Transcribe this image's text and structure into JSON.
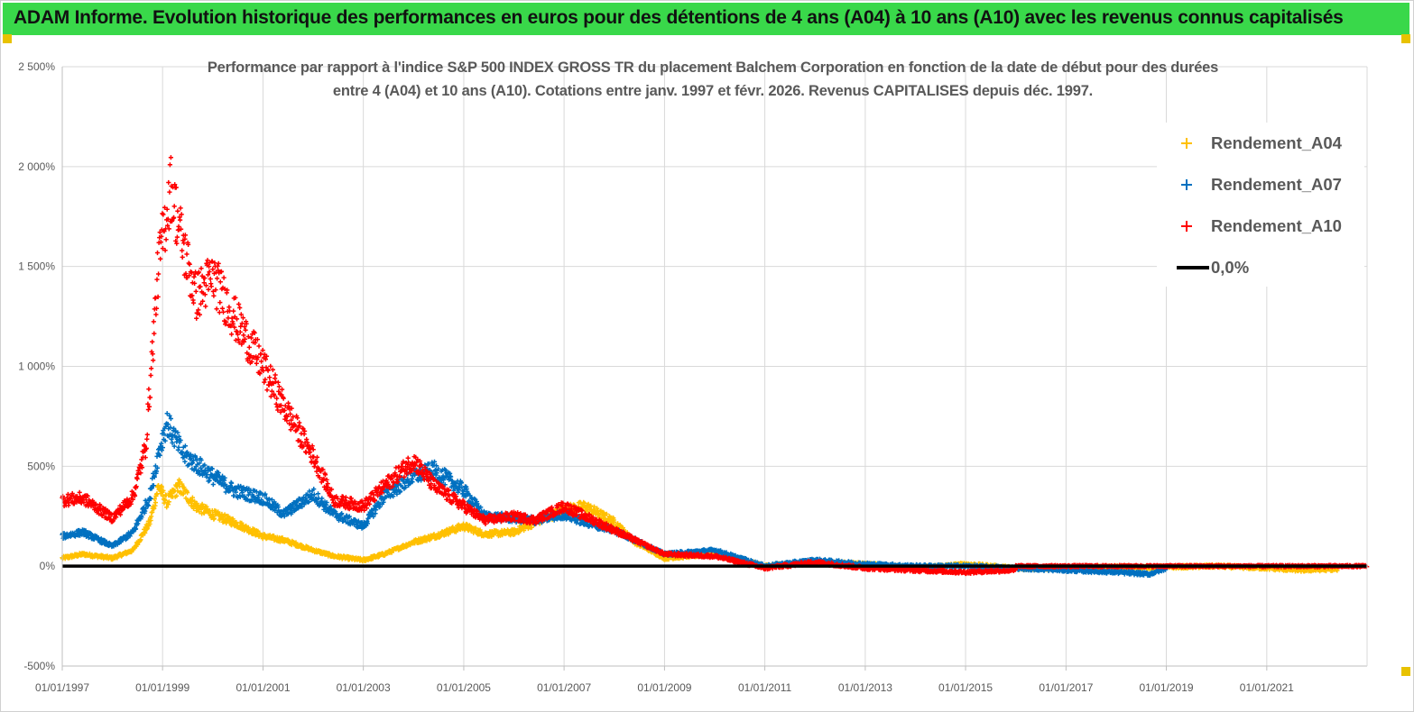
{
  "banner": {
    "title": "ADAM Informe. Evolution historique des performances en euros pour des détentions de 4 ans (A04) à 10 ans (A10) avec les revenus connus capitalisés"
  },
  "colors": {
    "banner_bg": "#39d84a",
    "a04": "#ffc000",
    "a07": "#0070c0",
    "a10": "#ff0000",
    "zero_line": "#000000",
    "axis_text": "#595959",
    "grid": "#d9d9d9"
  },
  "chart_data": {
    "type": "scatter",
    "title": "Performance par rapport à l'indice S&P 500 INDEX GROSS TR  du placement Balchem Corporation en fonction de la date de début pour des durées entre 4 (A04) et 10 ans (A10). Cotations entre janv. 1997 et févr. 2026. Revenus CAPITALISES depuis déc. 1997.",
    "title_lines": [
      "Performance par rapport à l'indice S&P 500 INDEX GROSS TR  du placement Balchem Corporation en fonction de la date de début pour des durées",
      "entre 4 (A04) et 10 ans (A10). Cotations entre janv. 1997 et févr. 2026. Revenus CAPITALISES depuis déc. 1997."
    ],
    "x_axis": {
      "type": "date",
      "range": [
        "1997-01-01",
        "2023-01-01"
      ],
      "tick_labels": [
        "01/01/1997",
        "01/01/1999",
        "01/01/2001",
        "01/01/2003",
        "01/01/2005",
        "01/01/2007",
        "01/01/2009",
        "01/01/2011",
        "01/01/2013",
        "01/01/2015",
        "01/01/2017",
        "01/01/2019",
        "01/01/2021"
      ]
    },
    "y_axis": {
      "range": [
        -500,
        2500
      ],
      "unit": "%",
      "tick_labels": [
        "-500%",
        "0%",
        "500%",
        "1 000%",
        "1 500%",
        "2 000%",
        "2 500%"
      ],
      "tick_values": [
        -500,
        0,
        500,
        1000,
        1500,
        2000,
        2500
      ]
    },
    "grid": true,
    "legend": {
      "position": "top-right"
    },
    "series": [
      {
        "name": "Rendement_A04",
        "marker": "plus",
        "color": "#ffc000",
        "end": "2022-06-01",
        "points": [
          [
            "1997-01-01",
            40
          ],
          [
            "1997-06-01",
            60
          ],
          [
            "1998-01-01",
            40
          ],
          [
            "1998-06-01",
            80
          ],
          [
            "1998-10-01",
            220
          ],
          [
            "1998-12-01",
            400
          ],
          [
            "1999-02-01",
            320
          ],
          [
            "1999-05-01",
            400
          ],
          [
            "1999-09-01",
            300
          ],
          [
            "2000-01-01",
            260
          ],
          [
            "2000-06-01",
            220
          ],
          [
            "2001-01-01",
            150
          ],
          [
            "2001-06-01",
            130
          ],
          [
            "2002-01-01",
            80
          ],
          [
            "2002-06-01",
            50
          ],
          [
            "2003-01-01",
            30
          ],
          [
            "2003-06-01",
            60
          ],
          [
            "2004-01-01",
            120
          ],
          [
            "2004-06-01",
            150
          ],
          [
            "2005-01-01",
            200
          ],
          [
            "2005-06-01",
            160
          ],
          [
            "2006-01-01",
            170
          ],
          [
            "2006-06-01",
            220
          ],
          [
            "2007-01-01",
            280
          ],
          [
            "2007-06-01",
            300
          ],
          [
            "2008-01-01",
            220
          ],
          [
            "2008-06-01",
            120
          ],
          [
            "2009-01-01",
            40
          ],
          [
            "2010-01-01",
            60
          ],
          [
            "2011-01-01",
            0
          ],
          [
            "2012-01-01",
            20
          ],
          [
            "2013-01-01",
            10
          ],
          [
            "2014-01-01",
            -10
          ],
          [
            "2015-01-01",
            10
          ],
          [
            "2016-01-01",
            -10
          ],
          [
            "2017-01-01",
            -10
          ],
          [
            "2018-01-01",
            -5
          ],
          [
            "2019-01-01",
            -5
          ],
          [
            "2020-01-01",
            0
          ],
          [
            "2021-01-01",
            -10
          ],
          [
            "2021-09-01",
            -20
          ],
          [
            "2022-06-01",
            -15
          ]
        ]
      },
      {
        "name": "Rendement_A07",
        "marker": "plus",
        "color": "#0070c0",
        "end": "2019-01-01",
        "points": [
          [
            "1997-01-01",
            150
          ],
          [
            "1997-06-01",
            170
          ],
          [
            "1998-01-01",
            100
          ],
          [
            "1998-06-01",
            170
          ],
          [
            "1998-10-01",
            350
          ],
          [
            "1998-12-01",
            560
          ],
          [
            "1999-02-01",
            720
          ],
          [
            "1999-06-01",
            560
          ],
          [
            "2000-01-01",
            450
          ],
          [
            "2000-06-01",
            380
          ],
          [
            "2001-01-01",
            340
          ],
          [
            "2001-06-01",
            260
          ],
          [
            "2002-01-01",
            360
          ],
          [
            "2002-06-01",
            260
          ],
          [
            "2003-01-01",
            200
          ],
          [
            "2003-06-01",
            350
          ],
          [
            "2004-01-01",
            450
          ],
          [
            "2004-06-01",
            480
          ],
          [
            "2005-01-01",
            380
          ],
          [
            "2005-06-01",
            250
          ],
          [
            "2006-01-01",
            240
          ],
          [
            "2006-06-01",
            230
          ],
          [
            "2007-01-01",
            260
          ],
          [
            "2007-06-01",
            220
          ],
          [
            "2008-01-01",
            180
          ],
          [
            "2009-01-01",
            60
          ],
          [
            "2010-01-01",
            80
          ],
          [
            "2011-01-01",
            0
          ],
          [
            "2012-01-01",
            30
          ],
          [
            "2013-01-01",
            10
          ],
          [
            "2014-01-01",
            0
          ],
          [
            "2015-01-01",
            0
          ],
          [
            "2016-01-01",
            -10
          ],
          [
            "2017-01-01",
            -20
          ],
          [
            "2018-01-01",
            -30
          ],
          [
            "2018-09-01",
            -40
          ],
          [
            "2019-01-01",
            -10
          ]
        ]
      },
      {
        "name": "Rendement_A10",
        "marker": "plus",
        "color": "#ff0000",
        "end": "2016-01-01",
        "points": [
          [
            "1997-01-01",
            330
          ],
          [
            "1997-06-01",
            340
          ],
          [
            "1998-01-01",
            240
          ],
          [
            "1998-06-01",
            350
          ],
          [
            "1998-09-01",
            600
          ],
          [
            "1998-12-01",
            1500
          ],
          [
            "1999-03-01",
            1900
          ],
          [
            "1999-06-01",
            1600
          ],
          [
            "1999-09-01",
            1350
          ],
          [
            "2000-01-01",
            1450
          ],
          [
            "2000-06-01",
            1250
          ],
          [
            "2001-01-01",
            1000
          ],
          [
            "2001-06-01",
            800
          ],
          [
            "2002-01-01",
            550
          ],
          [
            "2002-06-01",
            330
          ],
          [
            "2003-01-01",
            300
          ],
          [
            "2003-06-01",
            400
          ],
          [
            "2004-01-01",
            530
          ],
          [
            "2004-06-01",
            400
          ],
          [
            "2005-01-01",
            300
          ],
          [
            "2005-06-01",
            230
          ],
          [
            "2006-01-01",
            250
          ],
          [
            "2006-06-01",
            230
          ],
          [
            "2007-01-01",
            300
          ],
          [
            "2007-06-01",
            250
          ],
          [
            "2008-01-01",
            180
          ],
          [
            "2009-01-01",
            60
          ],
          [
            "2010-01-01",
            50
          ],
          [
            "2011-01-01",
            -10
          ],
          [
            "2012-01-01",
            20
          ],
          [
            "2013-01-01",
            -10
          ],
          [
            "2014-01-01",
            -20
          ],
          [
            "2015-01-01",
            -30
          ],
          [
            "2016-01-01",
            -20
          ]
        ]
      },
      {
        "name": "0,0%",
        "marker": "line",
        "color": "#000000",
        "points": [
          [
            "1997-01-01",
            0
          ],
          [
            "2023-01-01",
            0
          ]
        ]
      }
    ]
  }
}
